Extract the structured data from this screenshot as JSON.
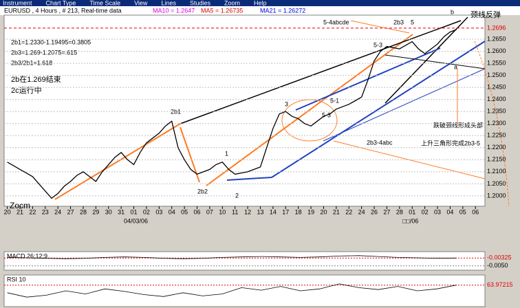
{
  "menu": [
    "Instrument",
    "Chart Type",
    "Time Scale",
    "View",
    "Lines",
    "Studies",
    "Zoom",
    "Help"
  ],
  "header": {
    "instrument": "EURUSD , 4 Hours , # 213, Real-time data",
    "ma10": "MA10 = 1.2647",
    "ma5": "MA5 = 1.26735",
    "ma21": "MA21 = 1.26272"
  },
  "annotations": {
    "watermark": "Zocm",
    "calc1": "2b1=1.2330-1.19495=0.3805",
    "calc2": "2b3=1.269-1.2075=.615",
    "calc3": "2b3/2b1=1.618",
    "note1": "2b在1.269结束",
    "note2": "2c运行中",
    "w2b1": "2b1",
    "w2b2": "2b2",
    "w1": "1",
    "w2": "2",
    "w3": "3",
    "w51": "5-1",
    "w53a": "5-3",
    "w53b": "5-3",
    "w2b3": "2b3",
    "w5": "5",
    "w54": "5-4abcde",
    "w2b34": "2b3-4abc",
    "triangle": "上升三角形完成2b3-5",
    "head": "跌破颈线形成头部",
    "neck": "颈线反弹",
    "wb": "b",
    "wa": "a"
  },
  "date_labels": [
    "04/03/06",
    "□□/06"
  ],
  "chart_data": [
    {
      "type": "line",
      "name": "price",
      "color": "#000000",
      "values": [
        1.214,
        1.2125,
        1.211,
        1.2095,
        1.208,
        1.205,
        1.202,
        1.199,
        1.201,
        1.204,
        1.206,
        1.2085,
        1.21,
        1.208,
        1.206,
        1.21,
        1.213,
        1.216,
        1.218,
        1.215,
        1.213,
        1.218,
        1.222,
        1.224,
        1.226,
        1.229,
        1.231,
        1.22,
        1.215,
        1.211,
        1.209,
        1.21,
        1.211,
        1.213,
        1.214,
        1.211,
        1.209,
        1.2095,
        1.21,
        1.211,
        1.212,
        1.22,
        1.228,
        1.234,
        1.235,
        1.233,
        1.232,
        1.23,
        1.229,
        1.231,
        1.233,
        1.234,
        1.236,
        1.237,
        1.238,
        1.2395,
        1.241,
        1.248,
        1.256,
        1.26,
        1.262,
        1.2615,
        1.261,
        1.2625,
        1.264,
        1.261,
        1.259,
        1.261,
        1.263,
        1.266,
        1.268,
        1.269
      ],
      "xlim": [
        -0.5,
        75.5
      ],
      "xticks": [
        {
          "value": 0,
          "label": "20"
        },
        {
          "value": 2,
          "label": "21"
        },
        {
          "value": 4,
          "label": "22"
        },
        {
          "value": 6,
          "label": "23"
        },
        {
          "value": 8,
          "label": "24"
        },
        {
          "value": 10,
          "label": "27"
        },
        {
          "value": 12,
          "label": "28"
        },
        {
          "value": 14,
          "label": "29"
        },
        {
          "value": 16,
          "label": "30"
        },
        {
          "value": 18,
          "label": "31"
        },
        {
          "value": 20,
          "label": "01"
        },
        {
          "value": 22,
          "label": "02"
        },
        {
          "value": 24,
          "label": "03"
        },
        {
          "value": 26,
          "label": "04"
        },
        {
          "value": 28,
          "label": "05"
        },
        {
          "value": 30,
          "label": "06"
        },
        {
          "value": 32,
          "label": "07"
        },
        {
          "value": 34,
          "label": "10"
        },
        {
          "value": 36,
          "label": "11"
        },
        {
          "value": 38,
          "label": "12"
        },
        {
          "value": 40,
          "label": "13"
        },
        {
          "value": 42,
          "label": "14"
        },
        {
          "value": 44,
          "label": "17"
        },
        {
          "value": 46,
          "label": "18"
        },
        {
          "value": 48,
          "label": "19"
        },
        {
          "value": 50,
          "label": "20"
        },
        {
          "value": 52,
          "label": "21"
        },
        {
          "value": 54,
          "label": "22"
        },
        {
          "value": 56,
          "label": "24"
        },
        {
          "value": 58,
          "label": "26"
        },
        {
          "value": 60,
          "label": "27"
        },
        {
          "value": 62,
          "label": "28"
        },
        {
          "value": 64,
          "label": "01"
        },
        {
          "value": 66,
          "label": "02"
        },
        {
          "value": 68,
          "label": "03"
        },
        {
          "value": 70,
          "label": "04"
        },
        {
          "value": 72,
          "label": "05"
        },
        {
          "value": 74,
          "label": "06"
        }
      ],
      "ylim": [
        1.1957,
        1.275
      ],
      "yticks": [
        {
          "value": 1.2,
          "label": "1.2000"
        },
        {
          "value": 1.205,
          "label": "1.2050"
        },
        {
          "value": 1.21,
          "label": "1.2100"
        },
        {
          "value": 1.215,
          "label": "1.2150"
        },
        {
          "value": 1.22,
          "label": "1.2200"
        },
        {
          "value": 1.225,
          "label": "1.2250"
        },
        {
          "value": 1.23,
          "label": "1.2300"
        },
        {
          "value": 1.235,
          "label": "1.2350"
        },
        {
          "value": 1.24,
          "label": "1.2400"
        },
        {
          "value": 1.245,
          "label": "1.2450"
        },
        {
          "value": 1.25,
          "label": "1.2500"
        },
        {
          "value": 1.255,
          "label": "1.2550"
        },
        {
          "value": 1.26,
          "label": "1.2600"
        },
        {
          "value": 1.265,
          "label": "1.2650"
        }
      ],
      "ref_line": 1.2696,
      "ref_color": "#e00000"
    },
    {
      "type": "line",
      "name": "MACD 26;12;9",
      "color": "#000000",
      "values": [
        -0.0031,
        -0.0032,
        -0.0033,
        -0.0034,
        -0.0033,
        -0.0031,
        -0.003,
        -0.0031,
        -0.0033,
        -0.0034,
        -0.0033,
        -0.0031,
        -0.003,
        -0.0029,
        -0.003,
        -0.0031,
        -0.003,
        -0.0028,
        -0.0027,
        -0.0029,
        -0.0031,
        -0.0032,
        -0.0033,
        -0.00325
      ],
      "ylim": [
        -0.00595,
        -0.00182
      ],
      "yticks": [
        -0.00325,
        {
          "value": -0.005,
          "label": "-0.0050"
        }
      ],
      "ref_color": "#e00000"
    },
    {
      "type": "line",
      "name": "RSI 10",
      "color": "#000000",
      "values": [
        52,
        45,
        48,
        55,
        50,
        58,
        54,
        49,
        46,
        52,
        47,
        50,
        60,
        56,
        62,
        55,
        58,
        66,
        60,
        57,
        62,
        55,
        58,
        63.97215
      ],
      "ylim": [
        30,
        80
      ],
      "yticks": [
        63.97215
      ],
      "ref_color": "#e00000"
    }
  ]
}
